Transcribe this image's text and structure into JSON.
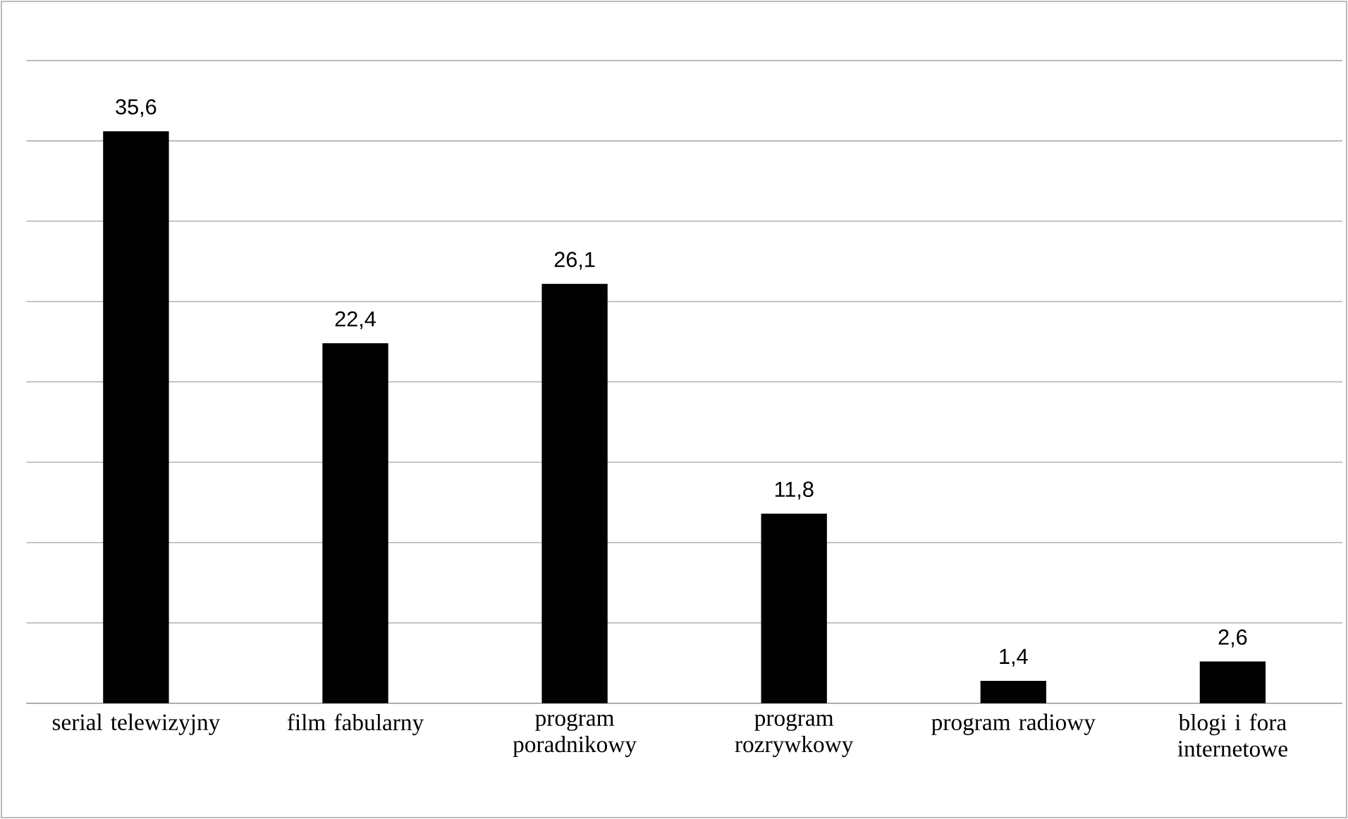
{
  "chart_data": {
    "type": "bar",
    "categories": [
      "serial telewizyjny",
      "film fabularny",
      "program poradnikowy",
      "program rozrywkowy",
      "program radiowy",
      "blogi i fora internetowe"
    ],
    "values": [
      35.6,
      22.4,
      26.1,
      11.8,
      1.4,
      2.6
    ],
    "value_labels": [
      "35,6",
      "22,4",
      "26,1",
      "11,8",
      "1,4",
      "2,6"
    ],
    "color": "#000000",
    "ylim": [
      0,
      40
    ],
    "yticks": [
      {
        "value": 0,
        "label": null
      },
      {
        "value": 5,
        "label": null
      },
      {
        "value": 10,
        "label": null
      },
      {
        "value": 15,
        "label": null
      },
      {
        "value": 20,
        "label": null
      },
      {
        "value": 25,
        "label": null
      },
      {
        "value": 30,
        "label": null
      },
      {
        "value": 35,
        "label": null
      },
      {
        "value": 40,
        "label": null
      }
    ],
    "grid": "y",
    "tick_labels": "x"
  }
}
